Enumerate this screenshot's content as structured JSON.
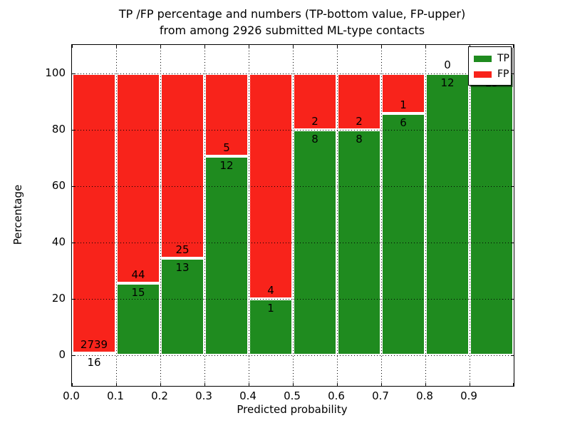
{
  "title": {
    "line1": "TP /FP percentage and numbers (TP-bottom value, FP-upper)",
    "line2": "from among 2926 submitted ML-type contacts"
  },
  "chart_data": {
    "type": "bar",
    "stacked": true,
    "units": "percent",
    "title": "TP /FP percentage and numbers (TP-bottom value, FP-upper) from among 2926 submitted ML-type contacts",
    "total_contacts": 2926,
    "xlabel": "Predicted probability",
    "ylabel": "Percentage",
    "xlim": [
      0.0,
      1.0
    ],
    "ylim": [
      -11,
      110
    ],
    "x_ticks": [
      "0.0",
      "0.1",
      "0.2",
      "0.3",
      "0.4",
      "0.5",
      "0.6",
      "0.7",
      "0.8",
      "0.9"
    ],
    "y_ticks": [
      0,
      20,
      40,
      60,
      80,
      100
    ],
    "grid": true,
    "grid_style": "dotted",
    "legend_position": "upper right",
    "series": [
      {
        "name": "TP",
        "color": "#1f8b1f"
      },
      {
        "name": "FP",
        "color": "#f8231b"
      }
    ],
    "bins": [
      {
        "x_range": [
          0.0,
          0.1
        ],
        "tp": 16,
        "fp": 2739,
        "tp_pct": 0.58,
        "fp_pct": 99.42
      },
      {
        "x_range": [
          0.1,
          0.2
        ],
        "tp": 15,
        "fp": 44,
        "tp_pct": 25.42,
        "fp_pct": 74.58
      },
      {
        "x_range": [
          0.2,
          0.3
        ],
        "tp": 13,
        "fp": 25,
        "tp_pct": 34.21,
        "fp_pct": 65.79
      },
      {
        "x_range": [
          0.3,
          0.4
        ],
        "tp": 12,
        "fp": 5,
        "tp_pct": 70.59,
        "fp_pct": 29.41
      },
      {
        "x_range": [
          0.4,
          0.5
        ],
        "tp": 1,
        "fp": 4,
        "tp_pct": 20.0,
        "fp_pct": 80.0
      },
      {
        "x_range": [
          0.5,
          0.6
        ],
        "tp": 8,
        "fp": 2,
        "tp_pct": 80.0,
        "fp_pct": 20.0
      },
      {
        "x_range": [
          0.6,
          0.7
        ],
        "tp": 8,
        "fp": 2,
        "tp_pct": 80.0,
        "fp_pct": 20.0
      },
      {
        "x_range": [
          0.7,
          0.8
        ],
        "tp": 6,
        "fp": 1,
        "tp_pct": 85.71,
        "fp_pct": 14.29
      },
      {
        "x_range": [
          0.8,
          0.9
        ],
        "tp": 12,
        "fp": 0,
        "tp_pct": 100.0,
        "fp_pct": 0.0
      },
      {
        "x_range": [
          0.9,
          1.0
        ],
        "tp": 13,
        "fp": 0,
        "tp_pct": 100.0,
        "fp_pct": 0.0
      }
    ]
  }
}
